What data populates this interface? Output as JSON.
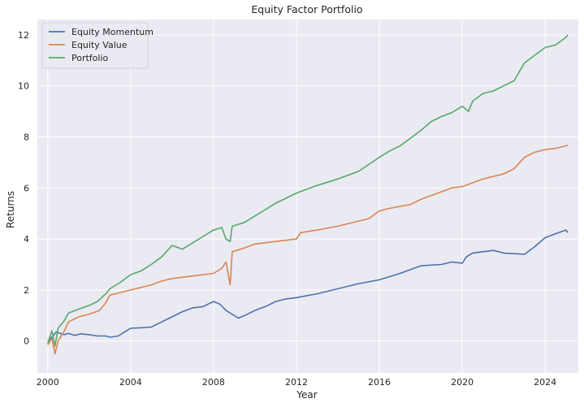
{
  "chart_data": {
    "type": "line",
    "title": "Equity Factor Portfolio",
    "xlabel": "Year",
    "ylabel": "Returns",
    "xlim": [
      1999.5,
      2025.6
    ],
    "ylim": [
      -1.25,
      12.6
    ],
    "xticks": [
      2000,
      2004,
      2008,
      2012,
      2016,
      2020,
      2024
    ],
    "yticks": [
      0,
      2,
      4,
      6,
      8,
      10,
      12
    ],
    "grid": true,
    "background": "#eaeaf2",
    "legend_position": "upper-left",
    "series": [
      {
        "name": "Equity Momentum",
        "color": "#4c72b0",
        "points": [
          [
            2000.0,
            0.0
          ],
          [
            2000.2,
            0.15
          ],
          [
            2000.4,
            0.35
          ],
          [
            2000.6,
            0.3
          ],
          [
            2000.8,
            0.25
          ],
          [
            2001.0,
            0.3
          ],
          [
            2001.3,
            0.22
          ],
          [
            2001.6,
            0.28
          ],
          [
            2002.0,
            0.25
          ],
          [
            2002.4,
            0.2
          ],
          [
            2002.8,
            0.2
          ],
          [
            2003.0,
            0.15
          ],
          [
            2003.4,
            0.2
          ],
          [
            2003.8,
            0.4
          ],
          [
            2004.0,
            0.5
          ],
          [
            2004.5,
            0.52
          ],
          [
            2005.0,
            0.55
          ],
          [
            2005.5,
            0.75
          ],
          [
            2006.0,
            0.95
          ],
          [
            2006.5,
            1.15
          ],
          [
            2007.0,
            1.3
          ],
          [
            2007.5,
            1.35
          ],
          [
            2008.0,
            1.55
          ],
          [
            2008.3,
            1.45
          ],
          [
            2008.6,
            1.2
          ],
          [
            2008.9,
            1.05
          ],
          [
            2009.2,
            0.9
          ],
          [
            2009.5,
            1.0
          ],
          [
            2010.0,
            1.2
          ],
          [
            2010.5,
            1.35
          ],
          [
            2011.0,
            1.55
          ],
          [
            2011.5,
            1.65
          ],
          [
            2012.0,
            1.7
          ],
          [
            2013.0,
            1.85
          ],
          [
            2014.0,
            2.05
          ],
          [
            2015.0,
            2.25
          ],
          [
            2016.0,
            2.4
          ],
          [
            2017.0,
            2.65
          ],
          [
            2018.0,
            2.95
          ],
          [
            2019.0,
            3.0
          ],
          [
            2019.5,
            3.1
          ],
          [
            2020.0,
            3.05
          ],
          [
            2020.2,
            3.3
          ],
          [
            2020.5,
            3.45
          ],
          [
            2021.0,
            3.5
          ],
          [
            2021.5,
            3.55
          ],
          [
            2022.0,
            3.45
          ],
          [
            2023.0,
            3.4
          ],
          [
            2023.5,
            3.7
          ],
          [
            2024.0,
            4.05
          ],
          [
            2024.5,
            4.2
          ],
          [
            2025.0,
            4.35
          ],
          [
            2025.1,
            4.25
          ]
        ]
      },
      {
        "name": "Equity Value",
        "color": "#dd8452",
        "points": [
          [
            2000.0,
            -0.15
          ],
          [
            2000.2,
            0.1
          ],
          [
            2000.35,
            -0.5
          ],
          [
            2000.5,
            0.0
          ],
          [
            2000.8,
            0.4
          ],
          [
            2001.0,
            0.75
          ],
          [
            2001.5,
            0.95
          ],
          [
            2002.0,
            1.05
          ],
          [
            2002.5,
            1.2
          ],
          [
            2002.8,
            1.5
          ],
          [
            2003.0,
            1.8
          ],
          [
            2003.5,
            1.9
          ],
          [
            2004.0,
            2.0
          ],
          [
            2004.5,
            2.1
          ],
          [
            2005.0,
            2.2
          ],
          [
            2005.5,
            2.35
          ],
          [
            2006.0,
            2.45
          ],
          [
            2007.0,
            2.55
          ],
          [
            2007.5,
            2.6
          ],
          [
            2008.0,
            2.65
          ],
          [
            2008.4,
            2.85
          ],
          [
            2008.6,
            3.1
          ],
          [
            2008.8,
            2.2
          ],
          [
            2008.9,
            3.5
          ],
          [
            2009.5,
            3.65
          ],
          [
            2010.0,
            3.8
          ],
          [
            2011.0,
            3.9
          ],
          [
            2012.0,
            4.0
          ],
          [
            2012.2,
            4.25
          ],
          [
            2013.0,
            4.35
          ],
          [
            2014.0,
            4.5
          ],
          [
            2015.0,
            4.7
          ],
          [
            2015.5,
            4.8
          ],
          [
            2016.0,
            5.1
          ],
          [
            2016.5,
            5.2
          ],
          [
            2017.5,
            5.35
          ],
          [
            2018.0,
            5.55
          ],
          [
            2019.0,
            5.85
          ],
          [
            2019.5,
            6.0
          ],
          [
            2020.0,
            6.05
          ],
          [
            2020.5,
            6.2
          ],
          [
            2021.0,
            6.35
          ],
          [
            2022.0,
            6.55
          ],
          [
            2022.5,
            6.75
          ],
          [
            2023.0,
            7.2
          ],
          [
            2023.5,
            7.4
          ],
          [
            2024.0,
            7.5
          ],
          [
            2024.5,
            7.55
          ],
          [
            2025.0,
            7.65
          ],
          [
            2025.1,
            7.68
          ]
        ]
      },
      {
        "name": "Portfolio",
        "color": "#55a868",
        "points": [
          [
            2000.0,
            -0.1
          ],
          [
            2000.2,
            0.4
          ],
          [
            2000.35,
            -0.2
          ],
          [
            2000.5,
            0.5
          ],
          [
            2000.8,
            0.8
          ],
          [
            2001.0,
            1.1
          ],
          [
            2001.5,
            1.25
          ],
          [
            2002.0,
            1.4
          ],
          [
            2002.4,
            1.55
          ],
          [
            2002.8,
            1.85
          ],
          [
            2003.0,
            2.05
          ],
          [
            2003.5,
            2.3
          ],
          [
            2004.0,
            2.6
          ],
          [
            2004.5,
            2.75
          ],
          [
            2005.0,
            3.0
          ],
          [
            2005.5,
            3.3
          ],
          [
            2006.0,
            3.75
          ],
          [
            2006.5,
            3.6
          ],
          [
            2007.0,
            3.85
          ],
          [
            2007.5,
            4.1
          ],
          [
            2008.0,
            4.35
          ],
          [
            2008.4,
            4.45
          ],
          [
            2008.6,
            4.0
          ],
          [
            2008.8,
            3.9
          ],
          [
            2008.9,
            4.5
          ],
          [
            2009.5,
            4.65
          ],
          [
            2010.0,
            4.9
          ],
          [
            2010.5,
            5.15
          ],
          [
            2011.0,
            5.4
          ],
          [
            2011.5,
            5.6
          ],
          [
            2012.0,
            5.8
          ],
          [
            2013.0,
            6.1
          ],
          [
            2014.0,
            6.35
          ],
          [
            2015.0,
            6.65
          ],
          [
            2016.0,
            7.2
          ],
          [
            2016.5,
            7.45
          ],
          [
            2017.0,
            7.65
          ],
          [
            2018.0,
            8.25
          ],
          [
            2018.5,
            8.6
          ],
          [
            2019.0,
            8.8
          ],
          [
            2019.5,
            8.95
          ],
          [
            2020.0,
            9.2
          ],
          [
            2020.3,
            9.0
          ],
          [
            2020.5,
            9.4
          ],
          [
            2021.0,
            9.7
          ],
          [
            2021.5,
            9.8
          ],
          [
            2022.0,
            10.0
          ],
          [
            2022.5,
            10.2
          ],
          [
            2023.0,
            10.9
          ],
          [
            2023.5,
            11.2
          ],
          [
            2024.0,
            11.5
          ],
          [
            2024.5,
            11.6
          ],
          [
            2025.0,
            11.9
          ],
          [
            2025.1,
            12.0
          ]
        ]
      }
    ]
  }
}
